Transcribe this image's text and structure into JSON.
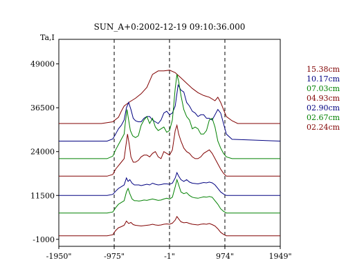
{
  "chart_data": {
    "type": "line",
    "title": "SUN_A+0:2002-12-19 09:10:36.000",
    "ylabel": "Ta,I",
    "xlabel": "",
    "xlim": [
      -1950,
      1949
    ],
    "ylim": [
      -3000,
      56000
    ],
    "x_ticks": [
      -1950,
      -975,
      -1,
      974,
      1949
    ],
    "x_tick_labels": [
      "-1950\"",
      "-975\"",
      "-1\"",
      "974\"",
      "1949\""
    ],
    "y_ticks": [
      -1000,
      11500,
      24000,
      36500,
      49000
    ],
    "y_tick_labels": [
      "-1000",
      "11500",
      "24000",
      "36500",
      "49000"
    ],
    "vlines_dashed": [
      -975,
      -1,
      974
    ],
    "grid": false,
    "legend_position": "right",
    "series": [
      {
        "name": "15.38cm",
        "color": "#800000",
        "offset": 32000,
        "x": [
          -1950,
          -1200,
          -1000,
          -900,
          -850,
          -800,
          -700,
          -600,
          -500,
          -400,
          -300,
          -200,
          -100,
          0,
          100,
          200,
          300,
          400,
          500,
          600,
          700,
          800,
          850,
          900,
          950,
          1000,
          1100,
          1200,
          1949
        ],
        "y": [
          0,
          0,
          500,
          1800,
          3500,
          5000,
          6200,
          7200,
          8500,
          10300,
          14000,
          15000,
          15000,
          15200,
          14500,
          13000,
          11500,
          10000,
          8800,
          8000,
          7500,
          6500,
          7500,
          6000,
          4000,
          2000,
          800,
          0,
          0
        ]
      },
      {
        "name": "10.17cm",
        "color": "#000080",
        "offset": 27000,
        "x": [
          -1950,
          -1100,
          -1000,
          -950,
          -900,
          -850,
          -800,
          -760,
          -720,
          -680,
          -640,
          -600,
          -550,
          -500,
          -450,
          -400,
          -350,
          -300,
          -250,
          -200,
          -150,
          -100,
          -50,
          0,
          50,
          100,
          150,
          200,
          250,
          300,
          350,
          400,
          450,
          500,
          550,
          600,
          650,
          700,
          750,
          800,
          850,
          900,
          950,
          1000,
          1100,
          1949
        ],
        "y": [
          0,
          0,
          600,
          2000,
          3500,
          4500,
          6000,
          9500,
          11000,
          9000,
          6500,
          5800,
          5500,
          5500,
          6500,
          7000,
          7000,
          6000,
          5500,
          5000,
          6000,
          8000,
          8500,
          7500,
          8000,
          10000,
          16000,
          14500,
          14000,
          11000,
          10000,
          8500,
          8000,
          7000,
          7500,
          7500,
          6500,
          6500,
          6000,
          7500,
          9000,
          8000,
          5000,
          2000,
          500,
          0
        ]
      },
      {
        "name": "07.03cm",
        "color": "#008000",
        "offset": 22000,
        "x": [
          -1950,
          -1100,
          -1000,
          -950,
          -900,
          -850,
          -800,
          -780,
          -750,
          -720,
          -690,
          -650,
          -600,
          -550,
          -500,
          -450,
          -400,
          -350,
          -300,
          -250,
          -200,
          -150,
          -100,
          -50,
          0,
          50,
          100,
          130,
          160,
          200,
          250,
          300,
          350,
          400,
          450,
          500,
          550,
          600,
          650,
          700,
          750,
          800,
          850,
          900,
          950,
          1000,
          1100,
          1949
        ],
        "y": [
          0,
          0,
          700,
          2500,
          4000,
          5500,
          7000,
          10000,
          14000,
          11000,
          8000,
          6500,
          6000,
          6500,
          9500,
          11000,
          12000,
          10000,
          11500,
          9000,
          8000,
          8500,
          9000,
          7500,
          8000,
          11000,
          20000,
          24000,
          22000,
          18000,
          14000,
          12000,
          11000,
          8500,
          9000,
          8500,
          7000,
          7000,
          8000,
          11000,
          11500,
          9000,
          5000,
          3000,
          1500,
          500,
          0,
          0
        ]
      },
      {
        "name": "04.93cm",
        "color": "#800000",
        "offset": 17000,
        "x": [
          -1950,
          -1100,
          -1000,
          -950,
          -900,
          -850,
          -800,
          -770,
          -740,
          -710,
          -680,
          -640,
          -600,
          -550,
          -500,
          -450,
          -400,
          -350,
          -300,
          -250,
          -200,
          -150,
          -100,
          -50,
          0,
          50,
          100,
          130,
          160,
          200,
          250,
          300,
          350,
          400,
          450,
          500,
          550,
          600,
          650,
          700,
          750,
          800,
          850,
          900,
          950,
          1000,
          1100,
          1949
        ],
        "y": [
          0,
          0,
          500,
          2000,
          3000,
          4000,
          5000,
          8500,
          12000,
          9000,
          5500,
          4000,
          4000,
          4500,
          5500,
          6000,
          6000,
          5500,
          6500,
          7000,
          5500,
          5000,
          7000,
          6500,
          6000,
          7500,
          13000,
          14500,
          12000,
          10000,
          8000,
          7000,
          6500,
          5500,
          5000,
          5000,
          5500,
          6500,
          7000,
          7500,
          6500,
          5000,
          3500,
          2000,
          800,
          0,
          0,
          0
        ]
      },
      {
        "name": "02.90cm",
        "color": "#000080",
        "offset": 11500,
        "x": [
          -1950,
          -1100,
          -1000,
          -950,
          -900,
          -850,
          -800,
          -760,
          -730,
          -700,
          -660,
          -620,
          -580,
          -540,
          -500,
          -450,
          -400,
          -350,
          -300,
          -250,
          -200,
          -150,
          -100,
          -50,
          0,
          50,
          100,
          130,
          160,
          200,
          250,
          300,
          350,
          400,
          450,
          500,
          550,
          600,
          650,
          700,
          750,
          800,
          850,
          900,
          950,
          1000,
          1100,
          1949
        ],
        "y": [
          0,
          0,
          300,
          1200,
          2000,
          2500,
          3000,
          5000,
          4000,
          4500,
          3500,
          3000,
          3000,
          3000,
          2800,
          3000,
          3200,
          3000,
          3500,
          3200,
          3000,
          3100,
          3300,
          3300,
          3200,
          3500,
          5000,
          6500,
          5500,
          4500,
          4000,
          4500,
          3800,
          3500,
          3400,
          3300,
          3500,
          3700,
          3600,
          3800,
          3600,
          3000,
          2000,
          1000,
          400,
          0,
          0,
          0
        ]
      },
      {
        "name": "02.67cm",
        "color": "#008000",
        "offset": 6500,
        "x": [
          -1950,
          -1100,
          -1000,
          -950,
          -900,
          -850,
          -800,
          -760,
          -730,
          -700,
          -660,
          -620,
          -580,
          -540,
          -500,
          -450,
          -400,
          -350,
          -300,
          -250,
          -200,
          -150,
          -100,
          -50,
          0,
          50,
          100,
          130,
          160,
          200,
          250,
          300,
          350,
          400,
          450,
          500,
          550,
          600,
          650,
          700,
          750,
          800,
          850,
          900,
          950,
          1000,
          1100,
          1949
        ],
        "y": [
          0,
          0,
          300,
          1500,
          2500,
          3000,
          3500,
          6000,
          7000,
          5500,
          4000,
          3500,
          3500,
          3400,
          3500,
          3700,
          3600,
          3800,
          4000,
          3800,
          3600,
          3700,
          4000,
          4200,
          4000,
          4500,
          7500,
          9500,
          8000,
          6000,
          5500,
          5800,
          5000,
          4500,
          4300,
          4200,
          4400,
          4600,
          4500,
          4700,
          4500,
          3500,
          2500,
          1200,
          500,
          0,
          0,
          0
        ]
      },
      {
        "name": "02.24cm",
        "color": "#800000",
        "offset": 0,
        "x": [
          -1950,
          -1100,
          -1000,
          -950,
          -900,
          -850,
          -800,
          -760,
          -720,
          -680,
          -640,
          -600,
          -550,
          -500,
          -450,
          -400,
          -350,
          -300,
          -250,
          -200,
          -150,
          -100,
          -50,
          0,
          50,
          100,
          130,
          160,
          200,
          250,
          300,
          350,
          400,
          450,
          500,
          550,
          600,
          650,
          700,
          750,
          800,
          850,
          900,
          950,
          1000,
          1100,
          1949
        ],
        "y": [
          0,
          0,
          300,
          1500,
          2300,
          2600,
          3000,
          4200,
          3500,
          3800,
          3200,
          3000,
          2900,
          2800,
          2900,
          3000,
          3100,
          3300,
          3100,
          3000,
          3100,
          3300,
          3400,
          3300,
          3600,
          4500,
          5500,
          4800,
          4000,
          3700,
          3800,
          3500,
          3300,
          3200,
          3100,
          3300,
          3400,
          3300,
          3500,
          3200,
          2800,
          2000,
          1000,
          400,
          0,
          0,
          0
        ]
      }
    ]
  }
}
